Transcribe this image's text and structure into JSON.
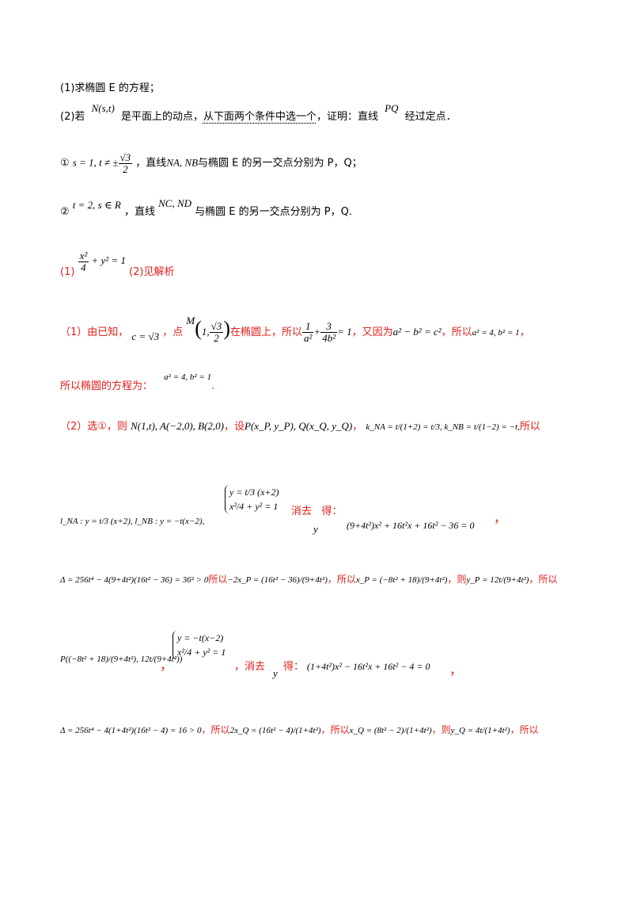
{
  "questions": {
    "q1": "(1)求椭圆 E 的方程；",
    "q2_prefix": "(2)若",
    "q2_math_N": "N(s,t)",
    "q2_mid": "是平面上的动点，",
    "q2_emph": "从下面两个条件中选一个",
    "q2_after": "，证明：直线",
    "q2_math_PQ": "PQ",
    "q2_end": "经过定点．",
    "c1_mark": "①",
    "c1_math_a": "s = 1, t ≠ ±",
    "c1_sqrt": "√3",
    "c1_den": "2",
    "c1_text_a": "，直线",
    "c1_math_b": "NA, NB",
    "c1_text_b": "与椭圆 E 的另一交点分别为 P，Q；",
    "c2_mark": "②",
    "c2_math_a": "t = 2, s ∈ R",
    "c2_text_a": "，直线",
    "c2_math_b": "NC, ND",
    "c2_text_b": "与椭圆 E 的另一交点分别为 P，Q."
  },
  "answer": {
    "label1": "(1)",
    "eq1": "x²/4 + y² = 1",
    "eq1_num": "x²",
    "eq1_den": "4",
    "eq1_rest": "+ y² = 1",
    "label2": "(2)见解析"
  },
  "solution": {
    "s1_a": "（1）由已知，",
    "s1_c": "c = √3",
    "s1_b": "，点",
    "s1_M": "M",
    "s1_M_coords": "(1, √3/2)",
    "s1_M_x": "1,",
    "s1_M_num": "√3",
    "s1_M_den": "2",
    "s1_c2": "在椭圆上，所以",
    "s1_eq": "1/a² + 3/(4b²) = 1",
    "s1_eq_n1": "1",
    "s1_eq_d1": "a²",
    "s1_eq_n2": "3",
    "s1_eq_d2": "4b²",
    "s1_eq_rhs": "= 1",
    "s1_d": "，又因为",
    "s1_rel": "a² − b² = c²",
    "s1_e": "，所以",
    "s1_vals": "a² = 4, b² = 1",
    "s1_f": "，",
    "s2_a": "所以椭圆的方程为：",
    "s2_vals": "a² = 4, b² = 1",
    "s2_end": ".",
    "s3_a": "（2）选①，则",
    "s3_pts": "N(1,t), A(−2,0), B(2,0)",
    "s3_b": "，设",
    "s3_PQ": "P(x_P, y_P), Q(x_Q, y_Q)",
    "s3_c": "，",
    "s3_k": "k_NA = t/(1+2) = t/3, k_NB = t/(1−2) = −t,",
    "s3_d": "所以",
    "s4_l": "l_NA : y = t/3 (x+2), l_NB : y = −t(x−2),",
    "s4_sys1": "y = t/3 (x+2)",
    "s4_sys2": "x²/4 + y² = 1",
    "s4_elim": "消去",
    "s4_get": "得：",
    "s4_y": "y",
    "s4_res": "(9+4t²)x² + 16t²x + 16t² − 36 = 0",
    "s4_end": "，",
    "s5_delta": "Δ = 256t⁴ − 4(9+4t²)(16t² − 36) = 36² > 0",
    "s5_a": "所以",
    "s5_sum": "−2x_P = (16t² − 36)/(9+4t²)",
    "s5_b": "，所以",
    "s5_xp": "x_P = (−8t² + 18)/(9+4t²)",
    "s5_c": "，则",
    "s5_yp": "y_P = 12t/(9+4t²)",
    "s5_d": "，所以",
    "s6_P": "P((−8t² + 18)/(9+4t²), 12t/(9+4t²))",
    "s6_comma": "，",
    "s6_sys1": "y = −t(x−2)",
    "s6_sys2": "x²/4 + y² = 1",
    "s6_elim": "，消去",
    "s6_get": "得：",
    "s6_y": "y",
    "s6_res": "(1+4t²)x² − 16t²x + 16t² − 4 = 0",
    "s6_end": "，",
    "s7_delta": "Δ = 256t⁴ − 4(1+4t²)(16t² − 4) = 16 > 0",
    "s7_a": "，所以",
    "s7_sum": "2x_Q = (16t² − 4)/(1+4t²)",
    "s7_b": "，所以",
    "s7_xq": "x_Q = (8t² − 2)/(1+4t²)",
    "s7_c": "，则",
    "s7_yq": "y_Q = 4t/(1+4t²)",
    "s7_d": "，所以"
  }
}
